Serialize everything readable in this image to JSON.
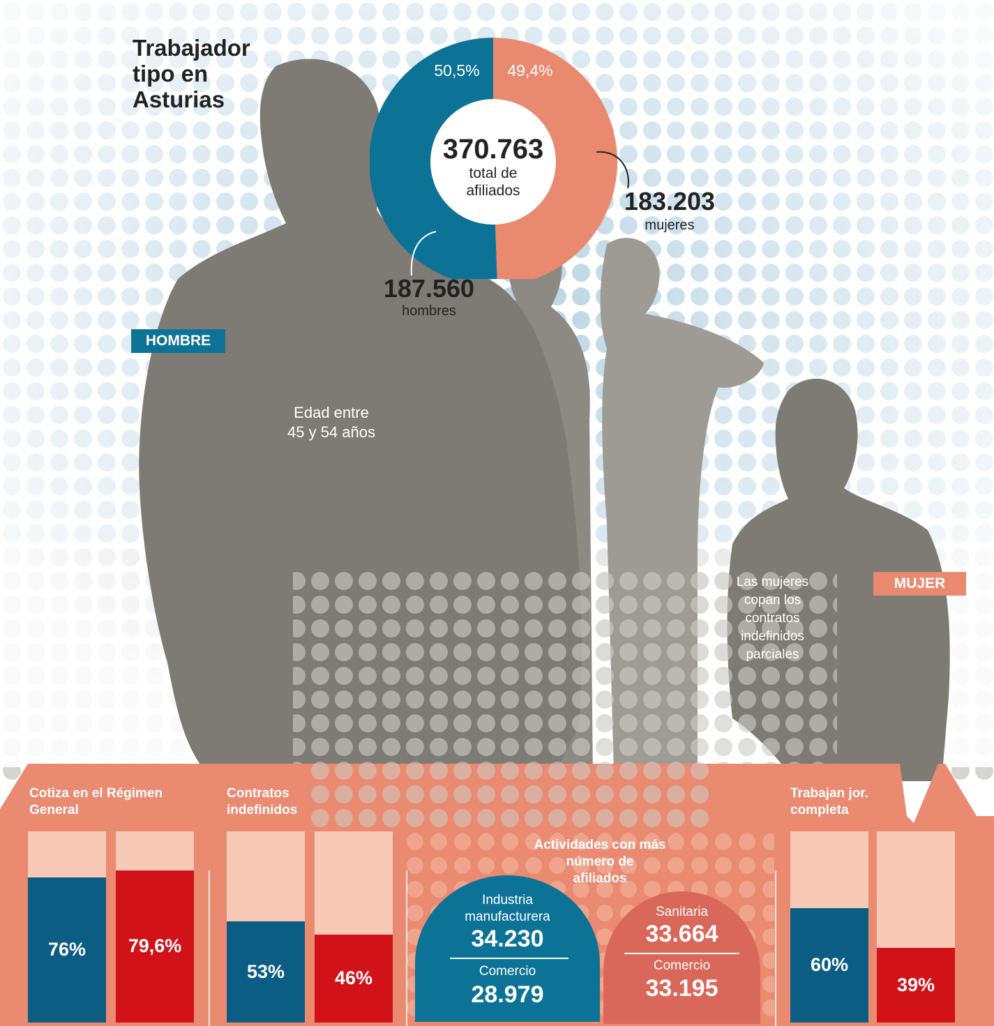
{
  "title": "Trabajador\ntipo en\nAsturias",
  "colors": {
    "men": "#0c7396",
    "women": "#e9896f",
    "bar_men": "#0c5d84",
    "bar_women": "#d21219",
    "panel": "#ea8a71",
    "panel_light": "#f7c9b6",
    "silhouette": "#7d7b74"
  },
  "tags": {
    "men": "HOMBRE",
    "women": "MUJER"
  },
  "donut": {
    "men_pct": "50,5%",
    "women_pct": "49,4%",
    "total": "370.763",
    "total_label": "total de\nafiliados"
  },
  "men": {
    "count": "187.560",
    "label": "hombres"
  },
  "women": {
    "count": "183.203",
    "label": "mujeres"
  },
  "notes": {
    "age": "Edad entre\n45 y 54 años",
    "women_contracts": "Las mujeres\ncopan los\ncontratos\nindefinidos\nparciales"
  },
  "activities": {
    "title": "Actividades con más\nnúmero de\nafiliados",
    "men": [
      {
        "label": "Industria\nmanufacturera",
        "value": "34.230"
      },
      {
        "label": "Comercio",
        "value": "28.979"
      }
    ],
    "women": [
      {
        "label": "Sanitaria",
        "value": "33.664"
      },
      {
        "label": "Comercio",
        "value": "33.195"
      }
    ]
  },
  "chart_data": {
    "type": "bar",
    "categories": [
      "Cotiza en el Régimen General",
      "Contratos indefinidos",
      "Trabajan jor. completa"
    ],
    "ylim": [
      0,
      100
    ],
    "series": [
      {
        "values": [
          76,
          53,
          60
        ],
        "labels": [
          "76%",
          "53%",
          "60%"
        ]
      },
      {
        "values": [
          79.6,
          46,
          39
        ],
        "labels": [
          "79,6%",
          "46%",
          "39%"
        ]
      }
    ],
    "donut": {
      "type": "pie",
      "values": [
        50.5,
        49.4
      ],
      "labels": [
        "50,5%",
        "49,4%"
      ]
    }
  }
}
